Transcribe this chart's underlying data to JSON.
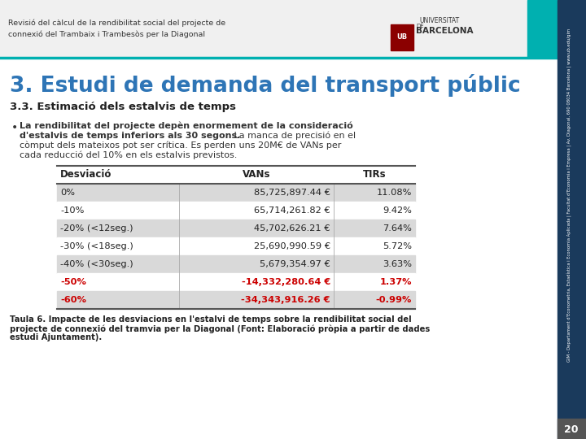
{
  "header_text_line1": "Revisió del càlcul de la rendibilitat social del projecte de",
  "header_text_line2": "connexió del Trambaix i Trambesòs per la Diagonal",
  "section_title": "3. Estudi de demanda del transport públic",
  "section_title_color": "#2e75b6",
  "subsection_title": "3.3. Estimació dels estalvis de temps",
  "bullet_line1": "La rendibilitat del projecte depèn enormement de la consideració",
  "bullet_line2": "d'estalvis de temps inferiors als 30 segons.",
  "bullet_line2_normal": " La manca de precisió en el",
  "bullet_line3": "còmput dels mateixos pot ser crítica. Es perden uns 20M€ de VANs per",
  "bullet_line4": "cada reducció del 10% en els estalvis previstos.",
  "table_headers": [
    "Desviació",
    "VANs",
    "TIRs"
  ],
  "table_rows": [
    [
      "0%",
      "85,725,897.44 €",
      "11.08%",
      false
    ],
    [
      "-10%",
      "65,714,261.82 €",
      "9.42%",
      false
    ],
    [
      "-20% (<12seg.)",
      "45,702,626.21 €",
      "7.64%",
      false
    ],
    [
      "-30% (<18seg.)",
      "25,690,990.59 €",
      "5.72%",
      false
    ],
    [
      "-40% (<30seg.)",
      "5,679,354.97 €",
      "3.63%",
      false
    ],
    [
      "-50%",
      "-14,332,280.64 €",
      "1.37%",
      true
    ],
    [
      "-60%",
      "-34,343,916.26 €",
      "-0.99%",
      true
    ]
  ],
  "row_bg_dark": "#d9d9d9",
  "row_bg_light": "#ffffff",
  "red_color": "#cc0000",
  "caption_line1": "Taula 6. Impacte de les desviacions en l'estalvi de temps sobre la rendibilitat social del",
  "caption_line2": "projecte de connexió del tramvia per la Diagonal (Font: Elaboració pròpia a partir de dades",
  "caption_line3": "estudi Ajuntament).",
  "sidebar_text": "GIM - Departament d'Econometria, Estadística i Economia Aplicada | Facultat d'Economia i Empresa | Av. Diagonal, 690 08034 Barcelona | www.ub.edu/gim",
  "page_number": "20",
  "teal_color": "#00b0b0",
  "header_bg": "#f0f0f0",
  "sidebar_dark": "#1a3a5c",
  "page_box_color": "#404040"
}
